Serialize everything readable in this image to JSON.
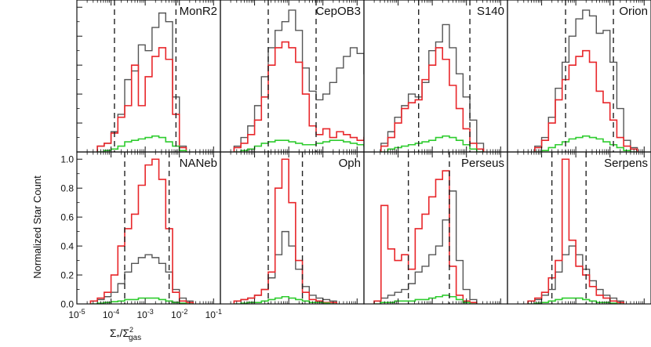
{
  "chart_data": {
    "type": "histogram-grid",
    "ylabel": "Normalized Star Count",
    "xlabel": "Σ*/Σ²gas",
    "xlabel_parts": {
      "sigma": "Σ",
      "star_sub": "*",
      "slash": "/",
      "gas_sub": "gas",
      "sq": "2"
    },
    "x_scale": "log10",
    "xlim_exp": [
      -5,
      -0.8
    ],
    "ylim": [
      0,
      1.05
    ],
    "x_ticks": [
      {
        "base": "10",
        "exp": "-5"
      },
      {
        "base": "10",
        "exp": "-4"
      },
      {
        "base": "10",
        "exp": "-3"
      },
      {
        "base": "10",
        "exp": "-2"
      },
      {
        "base": "10",
        "exp": "-1"
      }
    ],
    "x_tick_exps": [
      -5,
      -4,
      -3,
      -2,
      -1
    ],
    "y_ticks": [
      "0.0",
      "0.2",
      "0.4",
      "0.6",
      "0.8",
      "1.0"
    ],
    "y_tick_values": [
      0,
      0.2,
      0.4,
      0.6,
      0.8,
      1.0
    ],
    "series_colors": {
      "gray": "#555555",
      "red": "#e8262a",
      "green": "#2ecc2e",
      "dashed": "#222222"
    },
    "bin_width_exp": 0.2,
    "panels": [
      {
        "name": "MonR2",
        "row": 0,
        "col": 0,
        "bin_start_exp": -4.4,
        "dashed_exp": [
          -3.9,
          -2.1
        ],
        "gray": [
          0.04,
          0.06,
          0.14,
          0.26,
          0.5,
          0.56,
          0.74,
          0.7,
          0.86,
          0.96,
          0.9,
          0.38,
          0.04
        ],
        "red": [
          0.04,
          0.06,
          0.13,
          0.24,
          0.32,
          0.6,
          0.32,
          0.52,
          0.66,
          0.72,
          0.64,
          0.26,
          0.03
        ],
        "green": [
          0,
          0.01,
          0.02,
          0.04,
          0.07,
          0.08,
          0.09,
          0.1,
          0.11,
          0.1,
          0.07,
          0.04,
          0.01
        ]
      },
      {
        "name": "CepOB3",
        "row": 0,
        "col": 1,
        "bin_start_exp": -4.6,
        "dashed_exp": [
          -3.6,
          -2.2
        ],
        "gray": [
          0.04,
          0.1,
          0.18,
          0.32,
          0.52,
          0.72,
          0.84,
          0.9,
          0.98,
          0.84,
          0.58,
          0.42,
          0.36,
          0.4,
          0.48,
          0.58,
          0.66,
          0.72,
          0.68,
          0.54,
          0.42,
          0.14
        ],
        "red": [
          0.03,
          0.06,
          0.12,
          0.22,
          0.38,
          0.6,
          0.72,
          0.76,
          0.72,
          0.62,
          0.4,
          0.18,
          0.12,
          0.16,
          0.1,
          0.14,
          0.12,
          0.1,
          0.08,
          0.1,
          0.06,
          0.03
        ],
        "green": [
          0,
          0.01,
          0.02,
          0.04,
          0.06,
          0.07,
          0.08,
          0.08,
          0.07,
          0.06,
          0.05,
          0.05,
          0.06,
          0.07,
          0.08,
          0.08,
          0.07,
          0.06,
          0.05,
          0.04,
          0.02,
          0
        ]
      },
      {
        "name": "S140",
        "row": 0,
        "col": 2,
        "bin_start_exp": -4.5,
        "dashed_exp": [
          -3.4,
          -1.9
        ],
        "gray": [
          0.06,
          0.14,
          0.24,
          0.32,
          0.4,
          0.38,
          0.48,
          0.7,
          0.76,
          0.88,
          0.72,
          0.54,
          0.38,
          0.22,
          0.06
        ],
        "red": [
          0.04,
          0.1,
          0.2,
          0.3,
          0.34,
          0.36,
          0.5,
          0.6,
          0.72,
          0.64,
          0.46,
          0.3,
          0.16,
          0.06,
          0.02
        ],
        "green": [
          0,
          0.02,
          0.03,
          0.04,
          0.05,
          0.06,
          0.07,
          0.08,
          0.1,
          0.11,
          0.1,
          0.08,
          0.05,
          0.02,
          0
        ]
      },
      {
        "name": "Orion",
        "row": 0,
        "col": 3,
        "bin_start_exp": -4.2,
        "dashed_exp": [
          -3.3,
          -1.9
        ],
        "gray": [
          0.04,
          0.1,
          0.24,
          0.44,
          0.62,
          0.8,
          0.92,
          0.98,
          0.94,
          0.82,
          0.84,
          0.62,
          0.3,
          0.08,
          0.03
        ],
        "red": [
          0.03,
          0.08,
          0.2,
          0.36,
          0.5,
          0.6,
          0.66,
          0.7,
          0.62,
          0.42,
          0.34,
          0.22,
          0.1,
          0.04,
          0.02
        ],
        "green": [
          0,
          0.01,
          0.03,
          0.05,
          0.07,
          0.09,
          0.1,
          0.11,
          0.1,
          0.09,
          0.07,
          0.05,
          0.03,
          0.01,
          0
        ]
      },
      {
        "name": "NANeb",
        "row": 1,
        "col": 0,
        "bin_start_exp": -4.6,
        "dashed_exp": [
          -3.6,
          -2.3
        ],
        "gray": [
          0.02,
          0.03,
          0.05,
          0.08,
          0.14,
          0.22,
          0.28,
          0.32,
          0.34,
          0.32,
          0.28,
          0.22,
          0.1,
          0.04,
          0.02
        ],
        "red": [
          0.02,
          0.04,
          0.08,
          0.2,
          0.4,
          0.52,
          0.62,
          0.82,
          0.96,
          1.0,
          0.86,
          0.52,
          0.08,
          0.02,
          0.01
        ],
        "green": [
          0,
          0.005,
          0.01,
          0.015,
          0.02,
          0.03,
          0.03,
          0.04,
          0.04,
          0.04,
          0.03,
          0.02,
          0.01,
          0.005,
          0
        ]
      },
      {
        "name": "Oph",
        "row": 1,
        "col": 1,
        "bin_start_exp": -4.6,
        "dashed_exp": [
          -3.6,
          -2.6
        ],
        "gray": [
          0.02,
          0.03,
          0.04,
          0.06,
          0.1,
          0.18,
          0.34,
          0.5,
          0.4,
          0.24,
          0.12,
          0.06,
          0.04,
          0.03,
          0.02
        ],
        "red": [
          0.02,
          0.03,
          0.04,
          0.06,
          0.1,
          0.22,
          0.8,
          1.0,
          0.7,
          0.3,
          0.08,
          0.03,
          0.02,
          0.01,
          0.01
        ],
        "green": [
          0,
          0.005,
          0.01,
          0.01,
          0.02,
          0.03,
          0.04,
          0.05,
          0.04,
          0.03,
          0.02,
          0.01,
          0.01,
          0.005,
          0
        ]
      },
      {
        "name": "Perseus",
        "row": 1,
        "col": 2,
        "bin_start_exp": -4.7,
        "dashed_exp": [
          -3.7,
          -2.5
        ],
        "gray": [
          0.02,
          0.04,
          0.06,
          0.08,
          0.1,
          0.14,
          0.22,
          0.26,
          0.34,
          0.4,
          0.58,
          0.78,
          0.3,
          0.1,
          0.03
        ],
        "red": [
          0.02,
          0.68,
          0.38,
          0.3,
          0.34,
          0.24,
          0.52,
          0.62,
          0.74,
          0.86,
          0.92,
          0.26,
          0.06,
          0.02,
          0.01
        ],
        "green": [
          0,
          0.01,
          0.01,
          0.02,
          0.02,
          0.02,
          0.03,
          0.03,
          0.04,
          0.05,
          0.06,
          0.05,
          0.03,
          0.01,
          0
        ]
      },
      {
        "name": "Serpens",
        "row": 1,
        "col": 3,
        "bin_start_exp": -4.4,
        "dashed_exp": [
          -3.7,
          -2.7
        ],
        "gray": [
          0.02,
          0.03,
          0.06,
          0.1,
          0.22,
          0.34,
          0.4,
          0.34,
          0.24,
          0.16,
          0.1,
          0.06,
          0.04,
          0.02
        ],
        "red": [
          0.02,
          0.04,
          0.08,
          0.18,
          0.3,
          1.0,
          0.44,
          0.26,
          0.2,
          0.12,
          0.06,
          0.04,
          0.02,
          0.01
        ],
        "green": [
          0,
          0.005,
          0.01,
          0.02,
          0.03,
          0.04,
          0.04,
          0.04,
          0.03,
          0.02,
          0.01,
          0.01,
          0.005,
          0
        ]
      }
    ]
  }
}
